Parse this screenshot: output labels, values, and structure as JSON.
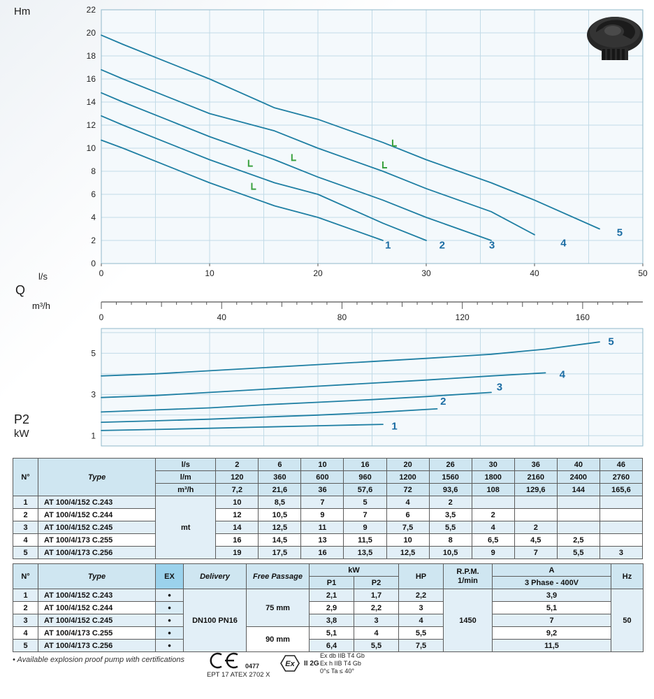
{
  "labels": {
    "hm": "Hm",
    "ls": "l/s",
    "q": "Q",
    "m3h": "m³/h",
    "p2": "P2",
    "kw": "kW"
  },
  "chart_data": [
    {
      "type": "line",
      "title": "Head curves",
      "xlabel": "Q (l/s)",
      "ylabel": "Hm (m)",
      "xlim": [
        0,
        50
      ],
      "ylim": [
        0,
        22
      ],
      "x_ticks": [
        0,
        10,
        20,
        30,
        40,
        50
      ],
      "x_minor_step": 5,
      "y_ticks": [
        0,
        2,
        4,
        6,
        8,
        10,
        12,
        14,
        16,
        18,
        20,
        22
      ],
      "grid": true,
      "line_color": "#1f7fa3",
      "label_color": "#1a6ca3",
      "series": [
        {
          "name": "1",
          "x": [
            0,
            2,
            6,
            10,
            16,
            20,
            26
          ],
          "y": [
            10.7,
            10,
            8.5,
            7,
            5,
            4,
            2
          ],
          "label_at": [
            26.2,
            1.3
          ]
        },
        {
          "name": "2",
          "x": [
            0,
            2,
            6,
            10,
            16,
            20,
            26,
            30
          ],
          "y": [
            12.8,
            12,
            10.5,
            9,
            7,
            6,
            3.5,
            2
          ],
          "label_at": [
            31.2,
            1.3
          ]
        },
        {
          "name": "3",
          "x": [
            0,
            2,
            6,
            10,
            16,
            20,
            26,
            30,
            36
          ],
          "y": [
            14.8,
            14,
            12.5,
            11,
            9,
            7.5,
            5.5,
            4,
            2
          ],
          "label_at": [
            35.8,
            1.3
          ]
        },
        {
          "name": "4",
          "x": [
            0,
            2,
            6,
            10,
            16,
            20,
            26,
            30,
            36,
            40
          ],
          "y": [
            16.8,
            16,
            14.5,
            13,
            11.5,
            10,
            8,
            6.5,
            4.5,
            2.5
          ],
          "label_at": [
            42.4,
            1.5
          ]
        },
        {
          "name": "5",
          "x": [
            0,
            2,
            6,
            10,
            16,
            20,
            26,
            30,
            36,
            40,
            46
          ],
          "y": [
            19.8,
            19,
            17.5,
            16,
            13.5,
            12.5,
            10.5,
            9,
            7,
            5.5,
            3
          ],
          "label_at": [
            47.6,
            2.4
          ]
        }
      ],
      "markers": {
        "color": "#3aa13f",
        "points": [
          [
            13.6,
            8.45
          ],
          [
            17.6,
            8.95
          ],
          [
            13.9,
            6.45
          ],
          [
            26.0,
            8.3
          ],
          [
            26.9,
            10.2
          ]
        ]
      }
    },
    {
      "type": "line",
      "title": "Absorbed power P2",
      "xlabel": "Q (l/s)",
      "ylabel": "P2 (kW)",
      "xlim": [
        0,
        50
      ],
      "ylim": [
        0.5,
        6.2
      ],
      "x_minor_step": 5,
      "y_ticks": [
        1,
        3,
        5
      ],
      "grid_y": [
        1,
        2,
        3,
        4,
        5,
        6
      ],
      "grid": true,
      "line_color": "#1f7fa3",
      "label_color": "#1a6ca3",
      "series": [
        {
          "name": "1",
          "x": [
            0,
            5,
            10,
            15,
            20,
            26
          ],
          "y": [
            1.25,
            1.3,
            1.36,
            1.42,
            1.48,
            1.55
          ],
          "label_at": [
            26.8,
            1.3
          ]
        },
        {
          "name": "2",
          "x": [
            0,
            5,
            10,
            15,
            20,
            25,
            31
          ],
          "y": [
            1.65,
            1.72,
            1.8,
            1.9,
            2.0,
            2.12,
            2.3
          ],
          "label_at": [
            31.3,
            2.5
          ]
        },
        {
          "name": "3",
          "x": [
            0,
            5,
            10,
            15,
            20,
            25,
            30,
            36
          ],
          "y": [
            2.15,
            2.25,
            2.35,
            2.5,
            2.62,
            2.75,
            2.9,
            3.1
          ],
          "label_at": [
            36.5,
            3.2
          ]
        },
        {
          "name": "4",
          "x": [
            0,
            5,
            10,
            15,
            20,
            25,
            30,
            36,
            41
          ],
          "y": [
            2.85,
            2.95,
            3.1,
            3.25,
            3.4,
            3.55,
            3.7,
            3.9,
            4.05
          ],
          "label_at": [
            42.3,
            3.8
          ]
        },
        {
          "name": "5",
          "x": [
            0,
            5,
            10,
            15,
            20,
            25,
            30,
            36,
            41,
            46
          ],
          "y": [
            3.9,
            4.0,
            4.15,
            4.3,
            4.45,
            4.6,
            4.75,
            4.95,
            5.2,
            5.55
          ],
          "label_at": [
            46.8,
            5.4
          ]
        }
      ]
    }
  ],
  "ruler": {
    "unit_label": "m³/h",
    "tick_step": 5,
    "mid_step": 20,
    "label_step": 40,
    "max": 175,
    "labels": [
      0,
      40,
      80,
      120,
      160
    ],
    "lps_per_m3h": 0.27778
  },
  "table1": {
    "col_no": "N°",
    "col_type": "Type",
    "unit_label": "mt",
    "unit_rows": [
      {
        "unit": "l/s",
        "values": [
          "2",
          "6",
          "10",
          "16",
          "20",
          "26",
          "30",
          "36",
          "40",
          "46"
        ]
      },
      {
        "unit": "l/m",
        "values": [
          "120",
          "360",
          "600",
          "960",
          "1200",
          "1560",
          "1800",
          "2160",
          "2400",
          "2760"
        ]
      },
      {
        "unit": "m³/h",
        "values": [
          "7,2",
          "21,6",
          "36",
          "57,6",
          "72",
          "93,6",
          "108",
          "129,6",
          "144",
          "165,6"
        ]
      }
    ],
    "rows": [
      {
        "no": "1",
        "type": "AT 100/4/152 C.243",
        "values": [
          "10",
          "8,5",
          "7",
          "5",
          "4",
          "2",
          "",
          "",
          "",
          ""
        ]
      },
      {
        "no": "2",
        "type": "AT 100/4/152 C.244",
        "values": [
          "12",
          "10,5",
          "9",
          "7",
          "6",
          "3,5",
          "2",
          "",
          "",
          ""
        ]
      },
      {
        "no": "3",
        "type": "AT 100/4/152 C.245",
        "values": [
          "14",
          "12,5",
          "11",
          "9",
          "7,5",
          "5,5",
          "4",
          "2",
          "",
          ""
        ]
      },
      {
        "no": "4",
        "type": "AT 100/4/173 C.255",
        "values": [
          "16",
          "14,5",
          "13",
          "11,5",
          "10",
          "8",
          "6,5",
          "4,5",
          "2,5",
          ""
        ]
      },
      {
        "no": "5",
        "type": "AT 100/4/173 C.256",
        "values": [
          "19",
          "17,5",
          "16",
          "13,5",
          "12,5",
          "10,5",
          "9",
          "7",
          "5,5",
          "3"
        ]
      }
    ]
  },
  "table2": {
    "headers": {
      "no": "N°",
      "type": "Type",
      "ex": "EX",
      "delivery": "Delivery",
      "free_passage": "Free Passage",
      "kw": "kW",
      "p1": "P1",
      "p2": "P2",
      "hp": "HP",
      "rpm": "R.P.M.",
      "rpm2": "1/min",
      "a": "A",
      "phase": "3 Phase - 400V",
      "hz": "Hz"
    },
    "ex_dot": "•",
    "delivery": "DN100 PN16",
    "free_passage_1": "75 mm",
    "free_passage_2": "90 mm",
    "rpm_value": "1450",
    "hz_value": "50",
    "rows": [
      {
        "no": "1",
        "type": "AT 100/4/152 C.243",
        "p1": "2,1",
        "p2": "1,7",
        "hp": "2,2",
        "a": "3,9"
      },
      {
        "no": "2",
        "type": "AT 100/4/152 C.244",
        "p1": "2,9",
        "p2": "2,2",
        "hp": "3",
        "a": "5,1"
      },
      {
        "no": "3",
        "type": "AT 100/4/152 C.245",
        "p1": "3,8",
        "p2": "3",
        "hp": "4",
        "a": "7"
      },
      {
        "no": "4",
        "type": "AT 100/4/173 C.255",
        "p1": "5,1",
        "p2": "4",
        "hp": "5,5",
        "a": "9,2"
      },
      {
        "no": "5",
        "type": "AT 100/4/173 C.256",
        "p1": "6,4",
        "p2": "5,5",
        "hp": "7,5",
        "a": "11,5"
      }
    ]
  },
  "footer": {
    "note": "• Available explosion proof pump with certifications",
    "ce_number": "0477",
    "atex": "EPT 17 ATEX 2702 X",
    "ex_mark": "Ex",
    "ex_class": "II 2G",
    "cert_lines": [
      "Ex db IIB T4 Gb",
      "Ex h IIB T4 Gb",
      "0°≤ Ta ≤ 40°"
    ]
  }
}
